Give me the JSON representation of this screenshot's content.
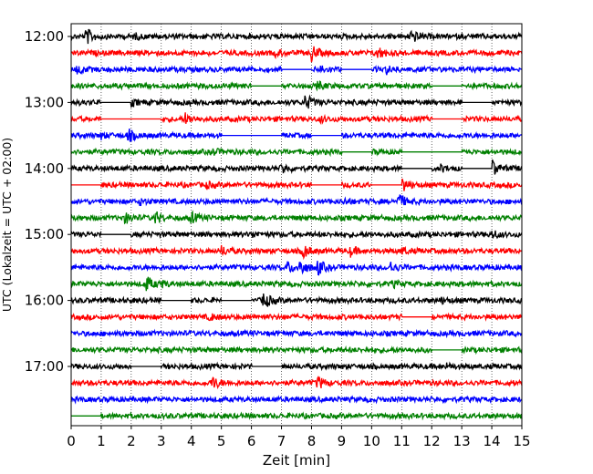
{
  "chart_data": {
    "type": "line",
    "title": "",
    "xlabel": "Zeit  [min]",
    "ylabel": "UTC (Lokalzeit = UTC + 02:00)",
    "xlim": [
      0,
      15
    ],
    "x_ticks": [
      "0",
      "1",
      "2",
      "3",
      "4",
      "5",
      "6",
      "7",
      "8",
      "9",
      "10",
      "11",
      "12",
      "13",
      "14",
      "15"
    ],
    "y_ticks": [
      "12:00",
      "13:00",
      "14:00",
      "15:00",
      "16:00",
      "17:00"
    ],
    "grid": "vertical dotted at each minute",
    "trace_interval_minutes": 15,
    "trace_color_cycle": [
      "#000000",
      "#ff0000",
      "#0000ff",
      "#008000"
    ],
    "traces": [
      {
        "start": "12:00",
        "gaps": [],
        "events": [
          {
            "t": 0.5,
            "amp": 1.0
          },
          {
            "t": 2.1,
            "amp": 0.25
          },
          {
            "t": 11.3,
            "amp": 0.9
          }
        ]
      },
      {
        "start": "12:15",
        "gaps": [],
        "events": [
          {
            "t": 8.0,
            "amp": 0.9
          },
          {
            "t": 10.2,
            "amp": 0.7
          },
          {
            "t": 6.8,
            "amp": 0.3
          }
        ]
      },
      {
        "start": "12:30",
        "gaps": [
          [
            7.0,
            8.0
          ],
          [
            9.0,
            10.0
          ]
        ],
        "events": [
          {
            "t": 0.2,
            "amp": 0.5
          },
          {
            "t": 8.3,
            "amp": 0.4
          },
          {
            "t": 10.5,
            "amp": 0.4
          }
        ]
      },
      {
        "start": "12:45",
        "gaps": [
          [
            6.0,
            7.0
          ],
          [
            12.0,
            13.0
          ]
        ],
        "events": [
          {
            "t": 8.2,
            "amp": 0.4
          }
        ]
      },
      {
        "start": "13:00",
        "gaps": [
          [
            1.0,
            2.0
          ],
          [
            13.0,
            14.0
          ]
        ],
        "events": [
          {
            "t": 7.8,
            "amp": 1.0
          },
          {
            "t": 2.0,
            "amp": 0.3
          }
        ]
      },
      {
        "start": "13:15",
        "gaps": [
          [
            1.0,
            3.0
          ],
          [
            12.0,
            13.0
          ]
        ],
        "events": [
          {
            "t": 3.8,
            "amp": 0.6
          },
          {
            "t": 8.3,
            "amp": 0.3
          }
        ]
      },
      {
        "start": "13:30",
        "gaps": [
          [
            5.0,
            7.0
          ],
          [
            8.0,
            9.0
          ]
        ],
        "events": [
          {
            "t": 1.9,
            "amp": 0.7
          },
          {
            "t": 1.0,
            "amp": 0.3
          }
        ]
      },
      {
        "start": "13:45",
        "gaps": [
          [
            9.0,
            10.0
          ],
          [
            11.0,
            13.0
          ]
        ],
        "events": [
          {
            "t": 9.7,
            "amp": 0.5
          },
          {
            "t": 4.7,
            "amp": 0.35
          }
        ]
      },
      {
        "start": "14:00",
        "gaps": [
          [
            11.0,
            12.0
          ],
          [
            13.0,
            14.0
          ]
        ],
        "events": [
          {
            "t": 14.0,
            "amp": 1.0
          },
          {
            "t": 7.0,
            "amp": 0.6
          },
          {
            "t": 12.3,
            "amp": 0.35
          }
        ]
      },
      {
        "start": "14:15",
        "gaps": [
          [
            0.0,
            1.0
          ],
          [
            8.0,
            9.0
          ],
          [
            10.0,
            11.0
          ]
        ],
        "events": [
          {
            "t": 11.0,
            "amp": 0.9
          },
          {
            "t": 4.5,
            "amp": 0.3
          },
          {
            "t": 8.5,
            "amp": 0.4
          }
        ]
      },
      {
        "start": "14:30",
        "gaps": [],
        "events": [
          {
            "t": 10.9,
            "amp": 0.9
          },
          {
            "t": 9.1,
            "amp": 0.3
          },
          {
            "t": 2.3,
            "amp": 0.35
          }
        ]
      },
      {
        "start": "14:45",
        "gaps": [],
        "events": [
          {
            "t": 1.8,
            "amp": 0.6
          },
          {
            "t": 2.8,
            "amp": 0.7
          },
          {
            "t": 4.0,
            "amp": 0.6
          }
        ]
      },
      {
        "start": "15:00",
        "gaps": [
          [
            1.0,
            2.0
          ]
        ],
        "events": [
          {
            "t": 14.0,
            "amp": 0.45
          },
          {
            "t": 6.0,
            "amp": 0.25
          }
        ]
      },
      {
        "start": "15:15",
        "gaps": [],
        "events": [
          {
            "t": 7.7,
            "amp": 0.9
          },
          {
            "t": 5.0,
            "amp": 0.5
          },
          {
            "t": 9.3,
            "amp": 0.5
          },
          {
            "t": 11.0,
            "amp": 0.4
          }
        ]
      },
      {
        "start": "15:30",
        "gaps": [],
        "events": [
          {
            "t": 7.6,
            "amp": 1.0
          },
          {
            "t": 8.2,
            "amp": 0.9
          },
          {
            "t": 7.2,
            "amp": 0.6
          },
          {
            "t": 10.6,
            "amp": 0.7
          }
        ]
      },
      {
        "start": "15:45",
        "gaps": [],
        "events": [
          {
            "t": 2.5,
            "amp": 0.9
          },
          {
            "t": 3.0,
            "amp": 0.3
          },
          {
            "t": 10.7,
            "amp": 0.3
          }
        ]
      },
      {
        "start": "16:00",
        "gaps": [
          [
            3.0,
            4.0
          ],
          [
            5.0,
            6.0
          ]
        ],
        "events": [
          {
            "t": 6.4,
            "amp": 1.0
          },
          {
            "t": 12.3,
            "amp": 0.3
          }
        ]
      },
      {
        "start": "16:15",
        "gaps": [
          [
            11.0,
            12.0
          ]
        ],
        "events": [
          {
            "t": 4.6,
            "amp": 0.35
          }
        ]
      },
      {
        "start": "16:30",
        "gaps": [],
        "events": []
      },
      {
        "start": "16:45",
        "gaps": [
          [
            12.0,
            13.0
          ]
        ],
        "events": []
      },
      {
        "start": "17:00",
        "gaps": [
          [
            2.0,
            3.0
          ],
          [
            6.0,
            7.0
          ]
        ],
        "events": [
          {
            "t": 12.5,
            "amp": 0.25
          }
        ]
      },
      {
        "start": "17:15",
        "gaps": [],
        "events": [
          {
            "t": 4.7,
            "amp": 0.8
          },
          {
            "t": 8.2,
            "amp": 0.75
          }
        ]
      },
      {
        "start": "17:30",
        "gaps": [],
        "events": []
      },
      {
        "start": "17:45",
        "gaps": [
          [
            0.0,
            1.0
          ]
        ],
        "events": []
      }
    ]
  }
}
